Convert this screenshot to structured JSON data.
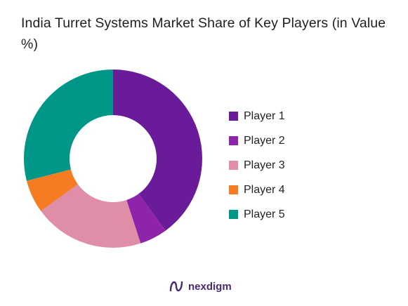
{
  "title": "India Turret Systems Market Share of Key Players (in Value %)",
  "brand": {
    "name": "nexdigm",
    "logo_icon": "nexdigm-logo-icon"
  },
  "chart_data": {
    "type": "pie",
    "donut": true,
    "title": "India Turret Systems Market Share of Key Players (in Value %)",
    "categories": [
      "Player 1",
      "Player 2",
      "Player 3",
      "Player 4",
      "Player 5"
    ],
    "values": [
      40,
      5,
      20,
      6,
      29
    ],
    "colors": [
      "#6a1b9a",
      "#8e24aa",
      "#e08ea7",
      "#f57c23",
      "#009688"
    ],
    "legend": "right"
  }
}
